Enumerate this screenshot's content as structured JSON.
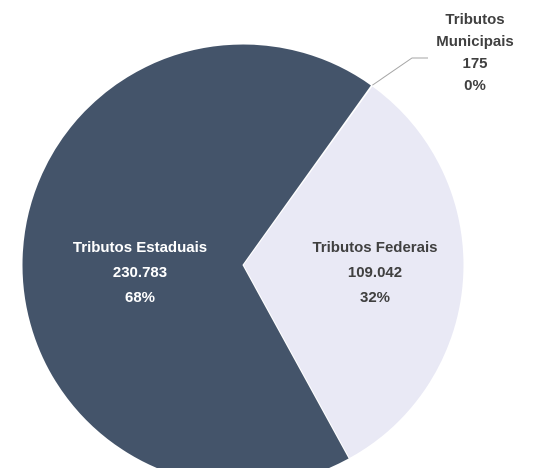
{
  "chart_data": {
    "type": "pie",
    "categories": [
      "Tributos Municipais",
      "Tributos Federais",
      "Tributos Estaduais"
    ],
    "values": [
      175,
      109042,
      230783
    ],
    "value_labels": [
      "175",
      "109.042",
      "230.783"
    ],
    "percent_labels": [
      "0%",
      "32%",
      "68%"
    ],
    "colors": [
      "#44546a",
      "#e9e9f5",
      "#44546a"
    ],
    "label_colors": [
      "#404040",
      "#404040",
      "#ffffff"
    ]
  }
}
